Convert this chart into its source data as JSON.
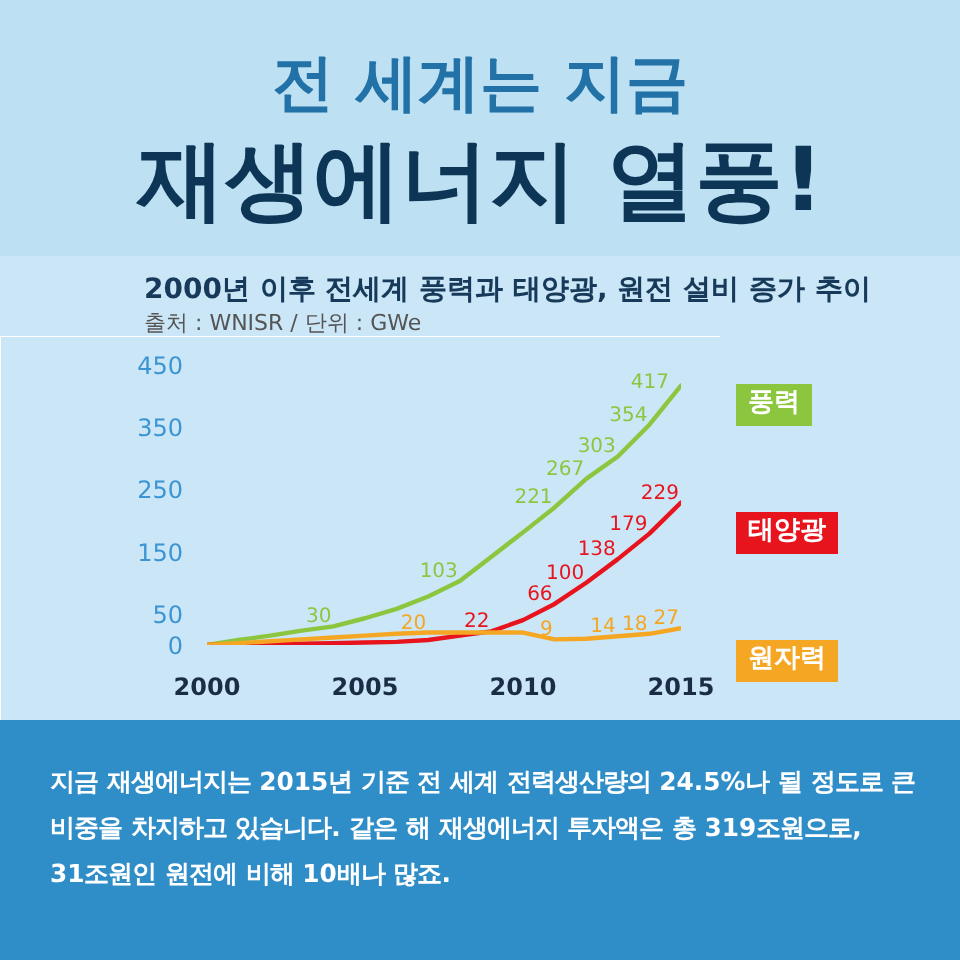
{
  "chart_data": {
    "type": "line",
    "title": "전 세계는 지금\n재생에너지 열풍!",
    "subtitle": "2000년 이후 전세계 풍력과 태양광, 원전 설비 증가 추이",
    "annotations": [
      "출처 : WNISR / 단위 : GWe",
      "지금 재생에너지는 2015년 기준 전 세계 전력생산량의 24.5%나 될 정도로 큰 비중을 차지하고 있습니다. 같은 해 재생에너지 투자액은 총 319조원으로, 31조원인 원전에 비해 10배나 많죠."
    ],
    "x": [
      2000,
      2001,
      2002,
      2003,
      2004,
      2005,
      2006,
      2007,
      2008,
      2009,
      2010,
      2011,
      2012,
      2013,
      2014,
      2015
    ],
    "xlim": [
      2000,
      2015
    ],
    "xticks": [
      2000,
      2005,
      2010,
      2015
    ],
    "ylim": [
      0,
      450
    ],
    "yticks": [
      0,
      50,
      150,
      250,
      350,
      450
    ],
    "legend": "right",
    "series": [
      {
        "name": "풍력",
        "color": "#8cc63f",
        "values": [
          0,
          8,
          15,
          23,
          30,
          43,
          58,
          78,
          103,
          142,
          181,
          221,
          267,
          303,
          354,
          417
        ],
        "value_labels": [
          null,
          null,
          null,
          null,
          "30",
          null,
          null,
          null,
          "103",
          null,
          null,
          "221",
          "267",
          "303",
          "354",
          "417"
        ]
      },
      {
        "name": "태양광",
        "color": "#e8141d",
        "values": [
          0,
          1,
          1,
          2,
          3,
          4,
          5,
          8,
          15,
          22,
          40,
          66,
          100,
          138,
          179,
          229
        ],
        "value_labels": [
          null,
          null,
          null,
          null,
          null,
          null,
          null,
          null,
          null,
          "22",
          null,
          "66",
          "100",
          "138",
          "179",
          "229"
        ]
      },
      {
        "name": "원자력",
        "color": "#f5a623",
        "values": [
          0,
          3,
          6,
          9,
          12,
          15,
          18,
          20,
          20,
          20,
          20,
          9,
          10,
          14,
          18,
          27
        ],
        "value_labels": [
          null,
          null,
          null,
          null,
          null,
          null,
          null,
          "20",
          null,
          null,
          null,
          "9",
          null,
          "14",
          "18",
          "27"
        ]
      }
    ]
  }
}
